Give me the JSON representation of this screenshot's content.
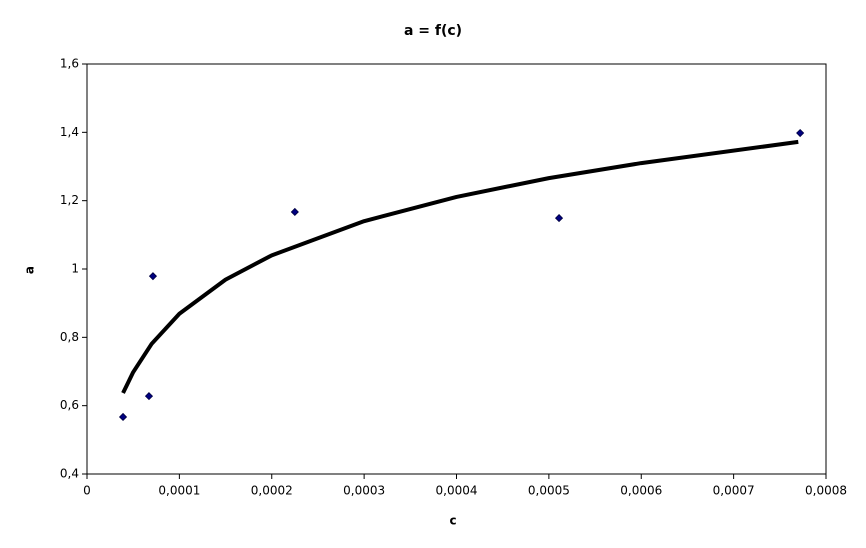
{
  "chart_data": {
    "type": "scatter",
    "title": "a = f(c)",
    "x_label": "c",
    "y_label": "a",
    "series": [
      {
        "color": "#000080",
        "x": [
          3.9e-05,
          6.71e-05,
          7.14e-05,
          0.000225,
          0.000511,
          0.000772
        ],
        "values": [
          0.567,
          0.628,
          0.979,
          1.167,
          1.149,
          1.398
        ]
      }
    ],
    "trendline": {
      "color": "#000000",
      "x": [
        3.9e-05,
        5e-05,
        7e-05,
        0.0001,
        0.00015,
        0.0002,
        0.0003,
        0.0004,
        0.0005,
        0.0006,
        0.00077
      ],
      "values": [
        0.637,
        0.698,
        0.781,
        0.869,
        0.969,
        1.04,
        1.14,
        1.211,
        1.266,
        1.31,
        1.372
      ]
    },
    "xlim": [
      0,
      0.0008
    ],
    "xticks": [
      0,
      {
        "value": 0.0001,
        "label": "0,0001"
      },
      {
        "value": 0.0002,
        "label": "0,0002"
      },
      {
        "value": 0.0003,
        "label": "0,0003"
      },
      {
        "value": 0.0004,
        "label": "0,0004"
      },
      {
        "value": 0.0005,
        "label": "0,0005"
      },
      {
        "value": 0.0006,
        "label": "0,0006"
      },
      {
        "value": 0.0007,
        "label": "0,0007"
      },
      {
        "value": 0.0008,
        "label": "0,0008"
      }
    ],
    "ylim": [
      0.4,
      1.6
    ],
    "yticks": [
      {
        "value": 0.4,
        "label": "0,4"
      },
      {
        "value": 0.6,
        "label": "0,6"
      },
      {
        "value": 0.8,
        "label": "0,8"
      },
      1,
      {
        "value": 1.2,
        "label": "1,2"
      },
      {
        "value": 1.4,
        "label": "1,4"
      },
      {
        "value": 1.6,
        "label": "1,6"
      }
    ]
  }
}
